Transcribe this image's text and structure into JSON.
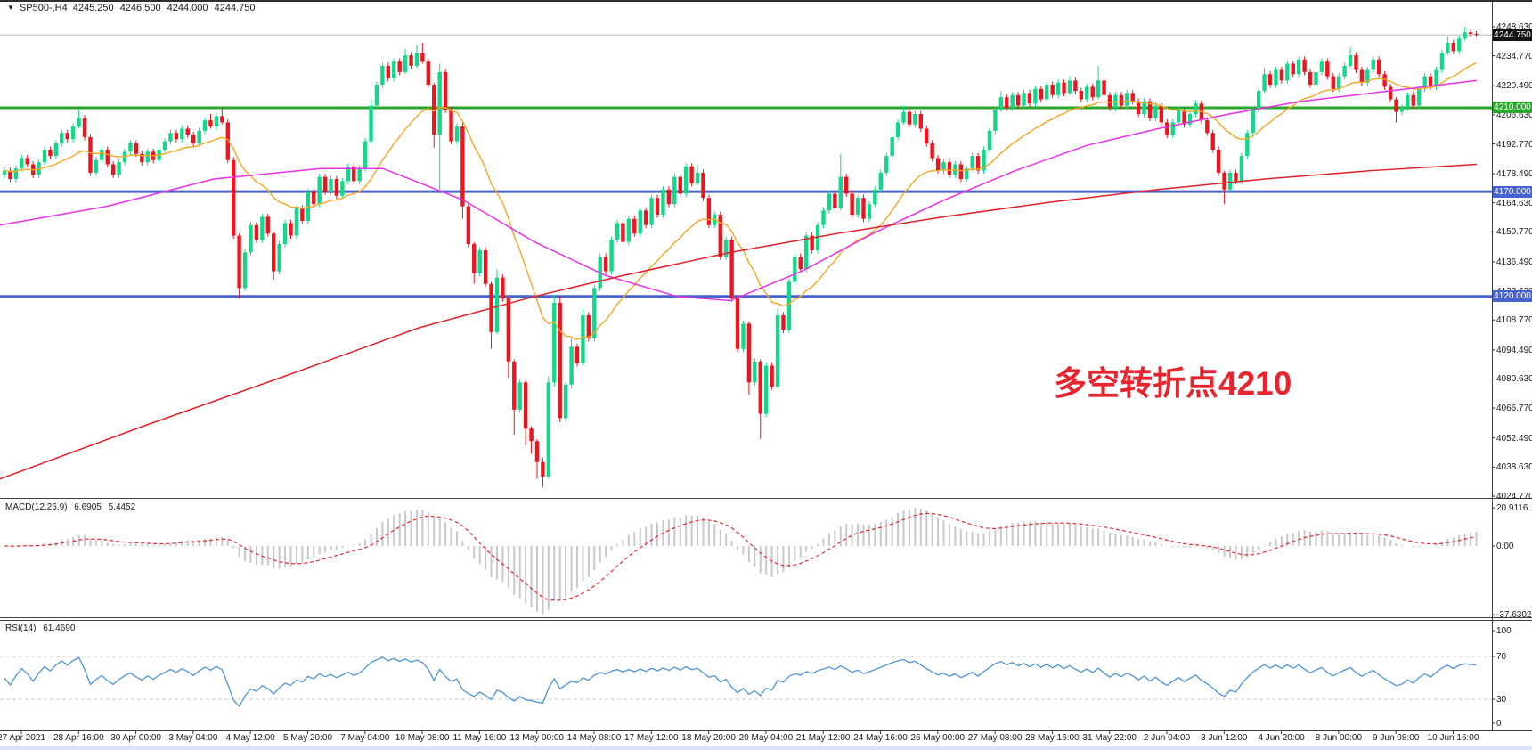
{
  "title": {
    "collapse_icon": "▼",
    "symbol": "SP500-,H4",
    "open": "4245.250",
    "high": "4246.500",
    "low": "4244.000",
    "close": "4244.750"
  },
  "annotation": {
    "text": "多空转折点4210",
    "color": "#e8252e"
  },
  "price_axis": {
    "labels": [
      "4248.630",
      "4234.770",
      "4220.490",
      "4206.630",
      "4192.770",
      "4178.490",
      "4164.630",
      "4150.770",
      "4136.490",
      "4122.630",
      "4108.770",
      "4094.490",
      "4080.630",
      "4066.770",
      "4052.490",
      "4038.630",
      "4024.770"
    ]
  },
  "time_axis": {
    "labels": [
      "27 Apr 2021",
      "28 Apr 16:00",
      "30 Apr 00:00",
      "3 May 04:00",
      "4 May 12:00",
      "5 May 20:00",
      "7 May 04:00",
      "10 May 08:00",
      "11 May 16:00",
      "13 May 00:00",
      "14 May 08:00",
      "17 May 12:00",
      "18 May 20:00",
      "20 May 04:00",
      "21 May 12:00",
      "24 May 16:00",
      "26 May 00:00",
      "27 May 08:00",
      "28 May 16:00",
      "31 May 22:00",
      "2 Jun 04:00",
      "3 Jun 12:00",
      "4 Jun 20:00",
      "8 Jun 00:00",
      "9 Jun 08:00",
      "10 Jun 16:00"
    ]
  },
  "macd_panel": {
    "name": "MACD(12,26,9)",
    "main_value": "6.6905",
    "signal_value": "5.4452",
    "axis_labels": [
      "20.9116",
      "0.00",
      "-37.6302"
    ]
  },
  "rsi_panel": {
    "name": "RSI(14)",
    "value": "61.4690",
    "axis_labels": [
      "100",
      "70",
      "30",
      "0"
    ]
  },
  "chart_data": {
    "type": "candlestick",
    "title": "SP500-,H4",
    "symbol": "SP500-",
    "timeframe": "H4",
    "ylim": [
      4024.77,
      4248.63
    ],
    "grid": false,
    "current_bar": {
      "open": 4245.25,
      "high": 4246.5,
      "low": 4244.0,
      "close": 4244.75
    },
    "first_open": 4178,
    "closes": [
      4180,
      4176,
      4181,
      4186,
      4183,
      4178,
      4184,
      4190,
      4187,
      4193,
      4198,
      4195,
      4201,
      4205,
      4196,
      4179,
      4185,
      4190,
      4183,
      4178,
      4184,
      4189,
      4193,
      4188,
      4184,
      4189,
      4185,
      4190,
      4194,
      4198,
      4195,
      4200,
      4197,
      4193,
      4199,
      4204,
      4201,
      4206,
      4203,
      4185,
      4149,
      4124,
      4141,
      4154,
      4147,
      4158,
      4150,
      4132,
      4145,
      4155,
      4149,
      4162,
      4156,
      4170,
      4164,
      4177,
      4170,
      4176,
      4168,
      4175,
      4182,
      4175,
      4181,
      4194,
      4211,
      4221,
      4230,
      4224,
      4232,
      4227,
      4235,
      4230,
      4236,
      4232,
      4221,
      4197,
      4227,
      4209,
      4194,
      4201,
      4163,
      4145,
      4131,
      4142,
      4126,
      4103,
      4129,
      4119,
      4089,
      4066,
      4079,
      4057,
      4051,
      4041,
      4034,
      4079,
      4117,
      4062,
      4078,
      4096,
      4088,
      4111,
      4100,
      4124,
      4139,
      4132,
      4147,
      4155,
      4146,
      4157,
      4150,
      4161,
      4154,
      4167,
      4159,
      4171,
      4164,
      4177,
      4169,
      4182,
      4174,
      4179,
      4167,
      4154,
      4159,
      4139,
      4147,
      4119,
      4095,
      4107,
      4079,
      4089,
      4064,
      4087,
      4077,
      4111,
      4104,
      4127,
      4139,
      4133,
      4149,
      4142,
      4154,
      4161,
      4169,
      4162,
      4177,
      4169,
      4159,
      4167,
      4157,
      4164,
      4171,
      4179,
      4187,
      4196,
      4203,
      4208,
      4202,
      4207,
      4200,
      4193,
      4186,
      4180,
      4184,
      4178,
      4183,
      4176,
      4181,
      4187,
      4180,
      4190,
      4199,
      4209,
      4215,
      4210,
      4216,
      4211,
      4217,
      4212,
      4219,
      4214,
      4221,
      4216,
      4222,
      4217,
      4223,
      4218,
      4214,
      4220,
      4215,
      4223,
      4216,
      4210,
      4216,
      4211,
      4217,
      4213,
      4207,
      4213,
      4205,
      4211,
      4203,
      4197,
      4203,
      4209,
      4202,
      4207,
      4212,
      4204,
      4198,
      4190,
      4179,
      4171,
      4179,
      4175,
      4187,
      4198,
      4209,
      4218,
      4226,
      4221,
      4228,
      4223,
      4231,
      4226,
      4233,
      4227,
      4221,
      4227,
      4232,
      4225,
      4219,
      4225,
      4230,
      4235,
      4228,
      4222,
      4228,
      4233,
      4226,
      4220,
      4214,
      4208,
      4210,
      4216,
      4211,
      4219,
      4225,
      4220,
      4228,
      4236,
      4241,
      4237,
      4243,
      4246,
      4245.25,
      4244.75
    ],
    "wick_overrides": {
      "13": [
        4,
        1
      ],
      "36": [
        3,
        1
      ],
      "38": [
        4,
        1
      ],
      "41": [
        1,
        5
      ],
      "47": [
        1,
        4
      ],
      "64": [
        3,
        1
      ],
      "70": [
        3,
        1
      ],
      "72": [
        4,
        1
      ],
      "73": [
        5,
        1
      ],
      "75": [
        1,
        6
      ],
      "76": [
        4,
        28
      ],
      "80": [
        2,
        6
      ],
      "82": [
        1,
        5
      ],
      "85": [
        1,
        8
      ],
      "86": [
        4,
        1
      ],
      "88": [
        1,
        8
      ],
      "89": [
        1,
        12
      ],
      "91": [
        1,
        8
      ],
      "92": [
        1,
        6
      ],
      "93": [
        1,
        8
      ],
      "94": [
        2,
        5
      ],
      "95": [
        3,
        1
      ],
      "96": [
        4,
        2
      ],
      "97": [
        3,
        2
      ],
      "99": [
        4,
        2
      ],
      "101": [
        3,
        1
      ],
      "121": [
        4,
        1
      ],
      "130": [
        1,
        6
      ],
      "132": [
        1,
        12
      ],
      "135": [
        3,
        1
      ],
      "146": [
        11,
        1
      ],
      "157": [
        3,
        1
      ],
      "174": [
        3,
        1
      ],
      "186": [
        2,
        1
      ],
      "191": [
        7,
        1
      ],
      "213": [
        1,
        7
      ],
      "220": [
        3,
        1
      ],
      "235": [
        4,
        1
      ],
      "243": [
        1,
        5
      ],
      "252": [
        3,
        1
      ],
      "255": [
        2.5,
        1
      ],
      "257": [
        1.25,
        0.75
      ]
    },
    "hlines": [
      {
        "value": 4210.0,
        "label": "4210.000",
        "color": "#28a728",
        "width": 3
      },
      {
        "value": 4170.0,
        "label": "4170.000",
        "color": "#4663cf",
        "width": 3
      },
      {
        "value": 4120.0,
        "label": "4120.000",
        "color": "#4663cf",
        "width": 3
      }
    ],
    "current_price": {
      "value": 4244.75,
      "label": "4244.750",
      "line_color": "#b9b9b9",
      "tag_bg": "#111111"
    },
    "colors": {
      "up_candle": "#12d98a",
      "down_candle": "#f0141e"
    },
    "ma_lines": {
      "orange": {
        "type": "ema",
        "period": 20,
        "color": "#f5a623"
      },
      "magenta": {
        "color": "#e832e8",
        "points": [
          [
            0,
            4154
          ],
          [
            120,
            4163
          ],
          [
            240,
            4176
          ],
          [
            360,
            4181
          ],
          [
            430,
            4181
          ],
          [
            520,
            4166
          ],
          [
            600,
            4146
          ],
          [
            680,
            4130
          ],
          [
            760,
            4120
          ],
          [
            820,
            4118
          ],
          [
            900,
            4132
          ],
          [
            980,
            4150
          ],
          [
            1060,
            4166
          ],
          [
            1140,
            4180
          ],
          [
            1220,
            4192
          ],
          [
            1300,
            4200
          ],
          [
            1380,
            4207
          ],
          [
            1460,
            4213
          ],
          [
            1560,
            4218
          ],
          [
            1658,
            4223
          ]
        ]
      },
      "red": {
        "color": "#e02028",
        "points": [
          [
            0,
            4033
          ],
          [
            160,
            4058
          ],
          [
            320,
            4082
          ],
          [
            470,
            4105
          ],
          [
            600,
            4120
          ],
          [
            700,
            4130
          ],
          [
            820,
            4141
          ],
          [
            940,
            4150
          ],
          [
            1060,
            4158
          ],
          [
            1180,
            4165
          ],
          [
            1300,
            4171
          ],
          [
            1420,
            4176
          ],
          [
            1540,
            4180
          ],
          [
            1658,
            4183
          ]
        ]
      }
    },
    "indicators": {
      "macd": {
        "fast": 12,
        "slow": 26,
        "signal": 9,
        "current_main": 6.6905,
        "current_signal": 5.4452,
        "range": [
          -37.6302,
          20.9116
        ],
        "histogram_color": "#c9c9c9",
        "signal_color": "#e8252e"
      },
      "rsi": {
        "period": 14,
        "current": 61.469,
        "range": [
          0,
          100
        ],
        "levels": [
          70,
          30
        ],
        "line_color": "#4f94d4"
      }
    }
  }
}
